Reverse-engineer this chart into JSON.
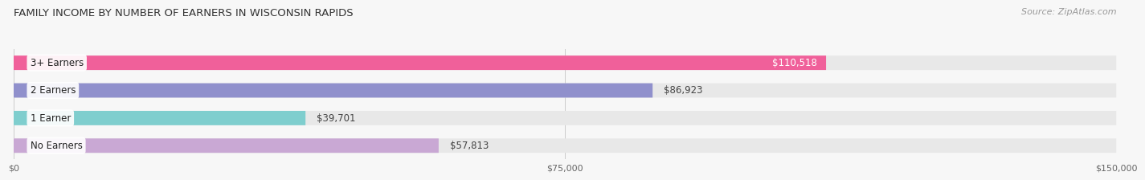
{
  "title": "FAMILY INCOME BY NUMBER OF EARNERS IN WISCONSIN RAPIDS",
  "source": "Source: ZipAtlas.com",
  "categories": [
    "No Earners",
    "1 Earner",
    "2 Earners",
    "3+ Earners"
  ],
  "values": [
    57813,
    39701,
    86923,
    110518
  ],
  "bar_colors": [
    "#c9a8d4",
    "#7fcece",
    "#9090cc",
    "#f0609a"
  ],
  "label_colors": [
    "#333333",
    "#333333",
    "#333333",
    "#ffffff"
  ],
  "bg_bar_color": "#e8e8e8",
  "max_value": 150000,
  "xticks": [
    0,
    75000,
    150000
  ],
  "xtick_labels": [
    "$0",
    "$75,000",
    "$150,000"
  ],
  "title_fontsize": 9.5,
  "source_fontsize": 8,
  "bar_label_fontsize": 8.5,
  "value_label_fontsize": 8.5,
  "bar_height": 0.52,
  "background_color": "#f7f7f7"
}
